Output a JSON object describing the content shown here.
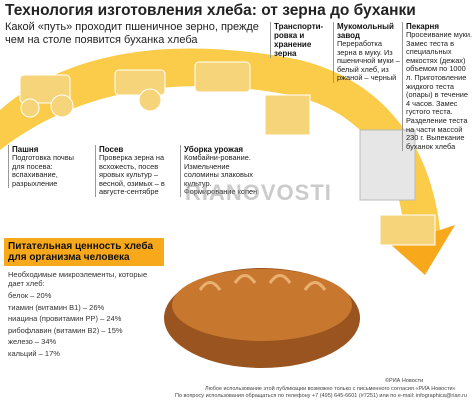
{
  "header": {
    "title": "Технология изготовления хлеба: от зерна до буханки",
    "subtitle": "Какой «путь» проходит пшеничное зерно, прежде чем на столе появится буханка хлеба"
  },
  "steps": [
    {
      "name": "Пашня",
      "text": "Подготовка почвы для посева: вспахивание, разрыхление"
    },
    {
      "name": "Посев",
      "text": "Проверка зерна на всхожесть, посев яровых культур – весной, озимых – в августе-сентябре"
    },
    {
      "name": "Уборка урожая",
      "text": "Комбайни-рование. Измельчение соломины злаковых культур. Формирование копен"
    },
    {
      "name": "Транспорти-ровка и хранение зерна"
    },
    {
      "name": "Мукомольный завод",
      "text": "Переработка зерна в муку. Из пшеничной муки – белый хлеб, из ржаной – черный"
    },
    {
      "name": "Пекарня",
      "text": "Просеивание муки. Замес теста в специальных емкостях (дежах) объемом по 1000 л. Приготовление жидкого теста (опары) в течение 4 часов. Замес густого теста. Разделение теста на части массой 230 г. Выпекание буханок хлеба"
    }
  ],
  "nutrition": {
    "title": "Питательная ценность хлеба для организма человека",
    "intro": "Необходимые микроэлементы, которые дает хлеб:",
    "items": [
      "белок – 20%",
      "тиамин (витамин В1) – 26%",
      "ниацина (провитамин РР) – 24%",
      "рибофлавин (витамин В2) – 15%",
      "железо – 34%",
      "кальций – 17%"
    ]
  },
  "watermark": "RIANOVOSTI",
  "footer": {
    "credit": "©РИА Новости",
    "line1": "Любое использование этой публикации возможно только с письменного согласия «РИА Новости»",
    "line2": "По вопросу использования обращаться по телефону +7 (495) 645-6601 (#7251) или по e-mail: infographica@rian.ru"
  }
}
